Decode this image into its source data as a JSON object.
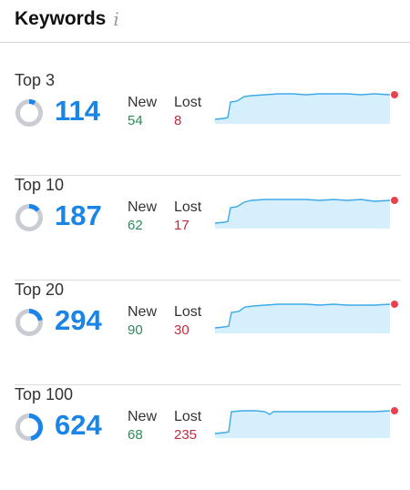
{
  "header": {
    "title": "Keywords",
    "info_icon": "info-icon"
  },
  "rows": [
    {
      "label": "Top 3",
      "count": "114",
      "new_label": "New",
      "new_value": "54",
      "lost_label": "Lost",
      "lost_value": "8",
      "ring_fraction": 0.08
    },
    {
      "label": "Top 10",
      "count": "187",
      "new_label": "New",
      "new_value": "62",
      "lost_label": "Lost",
      "lost_value": "17",
      "ring_fraction": 0.14
    },
    {
      "label": "Top 20",
      "count": "294",
      "new_label": "New",
      "new_value": "90",
      "lost_label": "Lost",
      "lost_value": "30",
      "ring_fraction": 0.22
    },
    {
      "label": "Top 100",
      "count": "624",
      "new_label": "New",
      "new_value": "68",
      "lost_label": "Lost",
      "lost_value": "235",
      "ring_fraction": 0.47
    }
  ],
  "colors": {
    "accent": "#1a85e6",
    "new": "#2e8b57",
    "lost": "#c42a3f",
    "ring_track": "#c9cdd3",
    "spark_line": "#3fa9e8",
    "spark_fill": "#d6effc",
    "spark_dot": "#e8424f"
  }
}
